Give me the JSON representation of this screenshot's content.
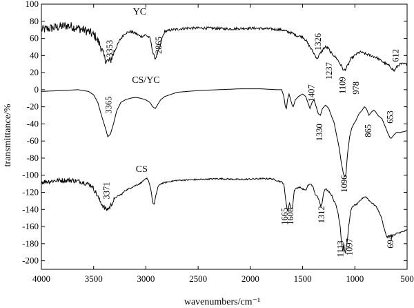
{
  "chart_data": {
    "type": "line",
    "title": "",
    "xlabel": "wavenumbers/cm⁻¹",
    "ylabel": "transmittance/%",
    "xlim": [
      4000,
      500
    ],
    "ylim": [
      -210,
      100
    ],
    "x_reversed": true,
    "x_ticks": [
      4000,
      3500,
      3000,
      2500,
      2000,
      1500,
      1000,
      500
    ],
    "y_ticks": [
      100,
      80,
      60,
      40,
      20,
      0,
      -20,
      -40,
      -60,
      -80,
      -100,
      -120,
      -140,
      -160,
      -180,
      -200
    ],
    "grid": false,
    "legend": "inline labels",
    "series": [
      {
        "name": "YC",
        "color": "#000000",
        "noise": 3,
        "points": [
          [
            4000,
            70
          ],
          [
            3850,
            73
          ],
          [
            3750,
            75
          ],
          [
            3650,
            72
          ],
          [
            3550,
            68
          ],
          [
            3480,
            62
          ],
          [
            3430,
            50
          ],
          [
            3400,
            38
          ],
          [
            3370,
            33
          ],
          [
            3340,
            34
          ],
          [
            3300,
            45
          ],
          [
            3250,
            58
          ],
          [
            3200,
            66
          ],
          [
            3150,
            68
          ],
          [
            3100,
            66
          ],
          [
            3050,
            62
          ],
          [
            3000,
            64
          ],
          [
            2960,
            60
          ],
          [
            2930,
            42
          ],
          [
            2910,
            36
          ],
          [
            2890,
            42
          ],
          [
            2865,
            50
          ],
          [
            2845,
            60
          ],
          [
            2820,
            68
          ],
          [
            2750,
            70
          ],
          [
            2600,
            72
          ],
          [
            2400,
            72
          ],
          [
            2200,
            71
          ],
          [
            2000,
            72
          ],
          [
            1800,
            71
          ],
          [
            1700,
            70
          ],
          [
            1650,
            68
          ],
          [
            1600,
            66
          ],
          [
            1550,
            63
          ],
          [
            1500,
            62
          ],
          [
            1470,
            58
          ],
          [
            1440,
            52
          ],
          [
            1410,
            46
          ],
          [
            1380,
            40
          ],
          [
            1360,
            36
          ],
          [
            1345,
            40
          ],
          [
            1326,
            43
          ],
          [
            1300,
            48
          ],
          [
            1280,
            50
          ],
          [
            1250,
            48
          ],
          [
            1237,
            44
          ],
          [
            1200,
            40
          ],
          [
            1170,
            36
          ],
          [
            1140,
            30
          ],
          [
            1120,
            26
          ],
          [
            1109,
            22
          ],
          [
            1090,
            24
          ],
          [
            1060,
            30
          ],
          [
            1040,
            36
          ],
          [
            1020,
            38
          ],
          [
            1000,
            40
          ],
          [
            978,
            42
          ],
          [
            950,
            44
          ],
          [
            900,
            42
          ],
          [
            850,
            40
          ],
          [
            800,
            38
          ],
          [
            750,
            34
          ],
          [
            700,
            30
          ],
          [
            660,
            27
          ],
          [
            640,
            24
          ],
          [
            625,
            22
          ],
          [
            612,
            24
          ],
          [
            590,
            28
          ],
          [
            560,
            30
          ],
          [
            530,
            30
          ],
          [
            500,
            30
          ]
        ]
      },
      {
        "name": "CS/YC",
        "color": "#000000",
        "noise": 0,
        "points": [
          [
            4000,
            -2
          ],
          [
            3800,
            -1
          ],
          [
            3650,
            0
          ],
          [
            3550,
            -2
          ],
          [
            3500,
            -6
          ],
          [
            3460,
            -15
          ],
          [
            3430,
            -28
          ],
          [
            3400,
            -40
          ],
          [
            3380,
            -48
          ],
          [
            3365,
            -55
          ],
          [
            3340,
            -52
          ],
          [
            3310,
            -40
          ],
          [
            3280,
            -25
          ],
          [
            3240,
            -15
          ],
          [
            3200,
            -12
          ],
          [
            3150,
            -10
          ],
          [
            3100,
            -9
          ],
          [
            3050,
            -10
          ],
          [
            3000,
            -12
          ],
          [
            2960,
            -15
          ],
          [
            2935,
            -20
          ],
          [
            2910,
            -22
          ],
          [
            2890,
            -18
          ],
          [
            2860,
            -12
          ],
          [
            2820,
            -8
          ],
          [
            2700,
            -3
          ],
          [
            2500,
            -1
          ],
          [
            2300,
            0
          ],
          [
            2100,
            1
          ],
          [
            1900,
            1
          ],
          [
            1750,
            0
          ],
          [
            1700,
            0
          ],
          [
            1680,
            -8
          ],
          [
            1665,
            -20
          ],
          [
            1655,
            -22
          ],
          [
            1645,
            -12
          ],
          [
            1630,
            -5
          ],
          [
            1600,
            -18
          ],
          [
            1590,
            -20
          ],
          [
            1570,
            -12
          ],
          [
            1540,
            -8
          ],
          [
            1500,
            -5
          ],
          [
            1470,
            -8
          ],
          [
            1450,
            -15
          ],
          [
            1430,
            -22
          ],
          [
            1407,
            -14
          ],
          [
            1390,
            -12
          ],
          [
            1370,
            -20
          ],
          [
            1350,
            -28
          ],
          [
            1330,
            -30
          ],
          [
            1310,
            -22
          ],
          [
            1280,
            -18
          ],
          [
            1250,
            -22
          ],
          [
            1220,
            -32
          ],
          [
            1200,
            -38
          ],
          [
            1180,
            -50
          ],
          [
            1150,
            -68
          ],
          [
            1130,
            -85
          ],
          [
            1110,
            -98
          ],
          [
            1096,
            -102
          ],
          [
            1085,
            -98
          ],
          [
            1070,
            -75
          ],
          [
            1050,
            -55
          ],
          [
            1030,
            -45
          ],
          [
            1010,
            -40
          ],
          [
            990,
            -36
          ],
          [
            960,
            -28
          ],
          [
            930,
            -24
          ],
          [
            910,
            -20
          ],
          [
            890,
            -22
          ],
          [
            865,
            -30
          ],
          [
            840,
            -26
          ],
          [
            820,
            -24
          ],
          [
            800,
            -26
          ],
          [
            780,
            -30
          ],
          [
            760,
            -32
          ],
          [
            740,
            -34
          ],
          [
            720,
            -40
          ],
          [
            700,
            -46
          ],
          [
            680,
            -52
          ],
          [
            665,
            -56
          ],
          [
            653,
            -57
          ],
          [
            640,
            -55
          ],
          [
            620,
            -52
          ],
          [
            600,
            -50
          ],
          [
            570,
            -50
          ],
          [
            530,
            -49
          ],
          [
            500,
            -48
          ]
        ]
      },
      {
        "name": "CS",
        "color": "#000000",
        "noise": 1.6,
        "points": [
          [
            4000,
            -108
          ],
          [
            3850,
            -106
          ],
          [
            3700,
            -106
          ],
          [
            3600,
            -108
          ],
          [
            3520,
            -112
          ],
          [
            3480,
            -120
          ],
          [
            3440,
            -130
          ],
          [
            3410,
            -136
          ],
          [
            3390,
            -139
          ],
          [
            3371,
            -140
          ],
          [
            3350,
            -138
          ],
          [
            3320,
            -132
          ],
          [
            3290,
            -126
          ],
          [
            3260,
            -124
          ],
          [
            3230,
            -122
          ],
          [
            3200,
            -118
          ],
          [
            3150,
            -115
          ],
          [
            3100,
            -112
          ],
          [
            3060,
            -110
          ],
          [
            3020,
            -106
          ],
          [
            2990,
            -104
          ],
          [
            2970,
            -108
          ],
          [
            2950,
            -118
          ],
          [
            2935,
            -132
          ],
          [
            2920,
            -134
          ],
          [
            2905,
            -124
          ],
          [
            2885,
            -114
          ],
          [
            2860,
            -110
          ],
          [
            2800,
            -108
          ],
          [
            2700,
            -106
          ],
          [
            2500,
            -105
          ],
          [
            2300,
            -104
          ],
          [
            2100,
            -105
          ],
          [
            1900,
            -104
          ],
          [
            1800,
            -104
          ],
          [
            1750,
            -106
          ],
          [
            1700,
            -108
          ],
          [
            1680,
            -110
          ],
          [
            1665,
            -126
          ],
          [
            1650,
            -138
          ],
          [
            1640,
            -142
          ],
          [
            1625,
            -132
          ],
          [
            1608,
            -140
          ],
          [
            1595,
            -136
          ],
          [
            1580,
            -118
          ],
          [
            1560,
            -115
          ],
          [
            1530,
            -114
          ],
          [
            1500,
            -116
          ],
          [
            1470,
            -118
          ],
          [
            1450,
            -112
          ],
          [
            1420,
            -110
          ],
          [
            1400,
            -114
          ],
          [
            1380,
            -122
          ],
          [
            1360,
            -125
          ],
          [
            1340,
            -130
          ],
          [
            1325,
            -136
          ],
          [
            1312,
            -132
          ],
          [
            1300,
            -120
          ],
          [
            1280,
            -116
          ],
          [
            1260,
            -118
          ],
          [
            1240,
            -120
          ],
          [
            1220,
            -124
          ],
          [
            1200,
            -130
          ],
          [
            1180,
            -135
          ],
          [
            1160,
            -145
          ],
          [
            1140,
            -160
          ],
          [
            1130,
            -175
          ],
          [
            1120,
            -185
          ],
          [
            1113,
            -190
          ],
          [
            1105,
            -180
          ],
          [
            1097,
            -190
          ],
          [
            1090,
            -190
          ],
          [
            1080,
            -182
          ],
          [
            1070,
            -175
          ],
          [
            1060,
            -160
          ],
          [
            1040,
            -142
          ],
          [
            1020,
            -136
          ],
          [
            1000,
            -135
          ],
          [
            980,
            -134
          ],
          [
            950,
            -130
          ],
          [
            920,
            -126
          ],
          [
            900,
            -125
          ],
          [
            880,
            -127
          ],
          [
            860,
            -130
          ],
          [
            840,
            -132
          ],
          [
            820,
            -134
          ],
          [
            800,
            -136
          ],
          [
            780,
            -140
          ],
          [
            760,
            -145
          ],
          [
            740,
            -152
          ],
          [
            720,
            -162
          ],
          [
            700,
            -170
          ],
          [
            694,
            -173
          ],
          [
            680,
            -171
          ],
          [
            660,
            -170
          ],
          [
            640,
            -170
          ],
          [
            620,
            -170
          ],
          [
            600,
            -168
          ],
          [
            570,
            -167
          ],
          [
            540,
            -166
          ],
          [
            500,
            -164
          ]
        ]
      }
    ],
    "series_labels": [
      {
        "series": "YC",
        "text": "YC",
        "x": 3060,
        "y": 88
      },
      {
        "series": "CS/YC",
        "text": "CS/YC",
        "x": 3000,
        "y": 8
      },
      {
        "series": "CS",
        "text": "CS",
        "x": 3040,
        "y": -96
      }
    ],
    "peak_labels": [
      {
        "text": "3353",
        "x": 3340,
        "y": 48
      },
      {
        "text": "2865",
        "x": 2870,
        "y": 52
      },
      {
        "text": "1326",
        "x": 1345,
        "y": 56
      },
      {
        "text": "1237",
        "x": 1240,
        "y": 22
      },
      {
        "text": "1109",
        "x": 1110,
        "y": 5
      },
      {
        "text": "978",
        "x": 980,
        "y": 2
      },
      {
        "text": "612",
        "x": 600,
        "y": 40
      },
      {
        "text": "3365",
        "x": 3350,
        "y": -18
      },
      {
        "text": "1407",
        "x": 1407,
        "y": -4
      },
      {
        "text": "1330",
        "x": 1330,
        "y": -50
      },
      {
        "text": "1096",
        "x": 1093,
        "y": -110
      },
      {
        "text": "865",
        "x": 867,
        "y": -48
      },
      {
        "text": "653",
        "x": 655,
        "y": -32
      },
      {
        "text": "3371",
        "x": 3370,
        "y": -118
      },
      {
        "text": "1665",
        "x": 1665,
        "y": -148
      },
      {
        "text": "1608",
        "x": 1608,
        "y": -148
      },
      {
        "text": "1312",
        "x": 1312,
        "y": -146
      },
      {
        "text": "1113",
        "x": 1130,
        "y": -186
      },
      {
        "text": "1097",
        "x": 1045,
        "y": -184
      },
      {
        "text": "694",
        "x": 650,
        "y": -178
      }
    ]
  }
}
